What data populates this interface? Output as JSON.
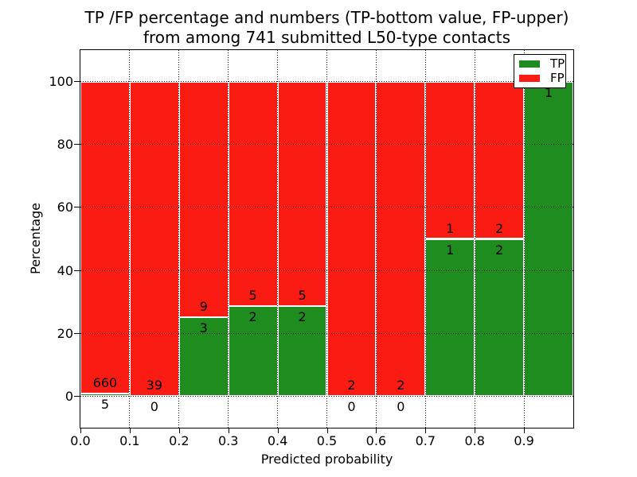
{
  "chart_data": {
    "type": "bar",
    "stacked": true,
    "title": "TP /FP percentage and numbers (TP-bottom value, FP-upper)",
    "subtitle": "from among 741 submitted L50-type contacts",
    "xlabel": "Predicted probability",
    "ylabel": "Percentage",
    "total_contacts": 741,
    "xlim": [
      0.0,
      1.0
    ],
    "ylim": [
      -10,
      110
    ],
    "xtick_labels": [
      "0.0",
      "0.1",
      "0.2",
      "0.3",
      "0.4",
      "0.5",
      "0.6",
      "0.7",
      "0.8",
      "0.9"
    ],
    "ytick_labels": [
      "0",
      "20",
      "40",
      "60",
      "80",
      "100"
    ],
    "grid_style": "dotted",
    "legend_position": "upper right",
    "colors": {
      "tp": "#1e8c1e",
      "fp": "#fa1c12"
    },
    "legend": {
      "entries": [
        {
          "label": "TP",
          "color": "#1e8c1e"
        },
        {
          "label": "FP",
          "color": "#fa1c12"
        }
      ]
    },
    "bins": [
      {
        "range": [
          0.0,
          0.1
        ],
        "tp": 5,
        "fp": 660,
        "tp_pct": 0.75
      },
      {
        "range": [
          0.1,
          0.2
        ],
        "tp": 0,
        "fp": 39,
        "tp_pct": 0
      },
      {
        "range": [
          0.2,
          0.3
        ],
        "tp": 3,
        "fp": 9,
        "tp_pct": 25
      },
      {
        "range": [
          0.3,
          0.4
        ],
        "tp": 2,
        "fp": 5,
        "tp_pct": 28.57
      },
      {
        "range": [
          0.4,
          0.5
        ],
        "tp": 2,
        "fp": 5,
        "tp_pct": 28.57
      },
      {
        "range": [
          0.5,
          0.6
        ],
        "tp": 0,
        "fp": 2,
        "tp_pct": 0
      },
      {
        "range": [
          0.6,
          0.7
        ],
        "tp": 0,
        "fp": 2,
        "tp_pct": 0
      },
      {
        "range": [
          0.7,
          0.8
        ],
        "tp": 1,
        "fp": 1,
        "tp_pct": 50
      },
      {
        "range": [
          0.8,
          0.9
        ],
        "tp": 2,
        "fp": 2,
        "tp_pct": 50
      },
      {
        "range": [
          0.9,
          1.0
        ],
        "tp": 1,
        "fp": 0,
        "tp_pct": 100
      }
    ]
  }
}
